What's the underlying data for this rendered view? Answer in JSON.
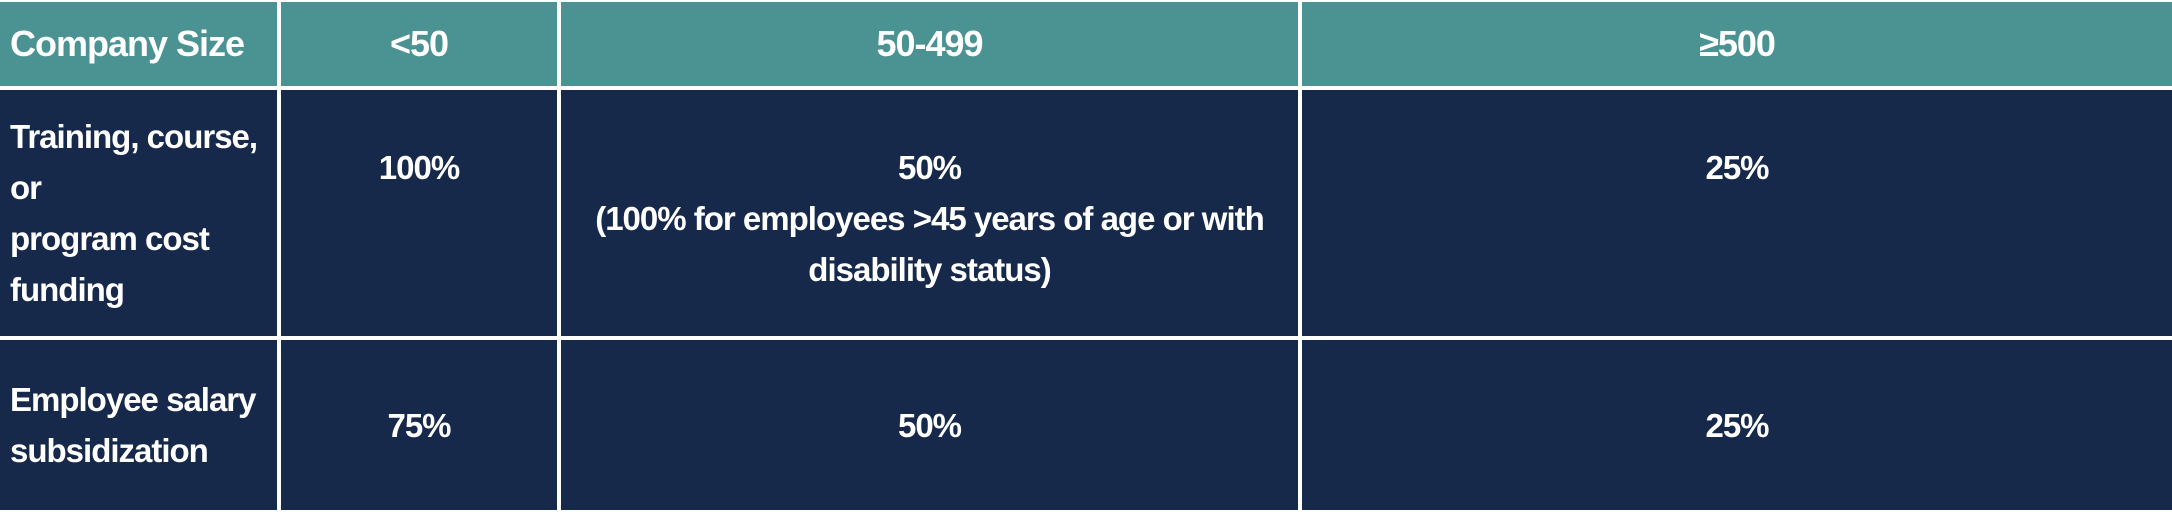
{
  "theme": {
    "header_bg": "#4a9392",
    "body_bg": "#17294a",
    "text_color": "#ffffff",
    "grid_line_color": "#ffffff"
  },
  "table": {
    "columns": [
      {
        "label": "Company Size"
      },
      {
        "label": "<50"
      },
      {
        "label": "50-499"
      },
      {
        "label": "≥500"
      }
    ],
    "rows": [
      {
        "label": "Training, course, or\nprogram cost\nfunding",
        "values": [
          {
            "main": "100%"
          },
          {
            "main": "50%",
            "note": "(100% for employees >45 years of age or with\ndisability status)"
          },
          {
            "main": "25%"
          }
        ]
      },
      {
        "label": "Employee salary\nsubsidization",
        "values": [
          {
            "main": "75%"
          },
          {
            "main": "50%"
          },
          {
            "main": "25%"
          }
        ]
      }
    ]
  },
  "chart_data": {
    "type": "table",
    "title": "",
    "columns": [
      "Company Size",
      "<50",
      "50-499",
      "≥500"
    ],
    "rows": [
      [
        "Training, course, or program cost funding",
        "100%",
        "50% (100% for employees >45 years of age or with disability status)",
        "25%"
      ],
      [
        "Employee salary subsidization",
        "75%",
        "50%",
        "25%"
      ]
    ]
  }
}
